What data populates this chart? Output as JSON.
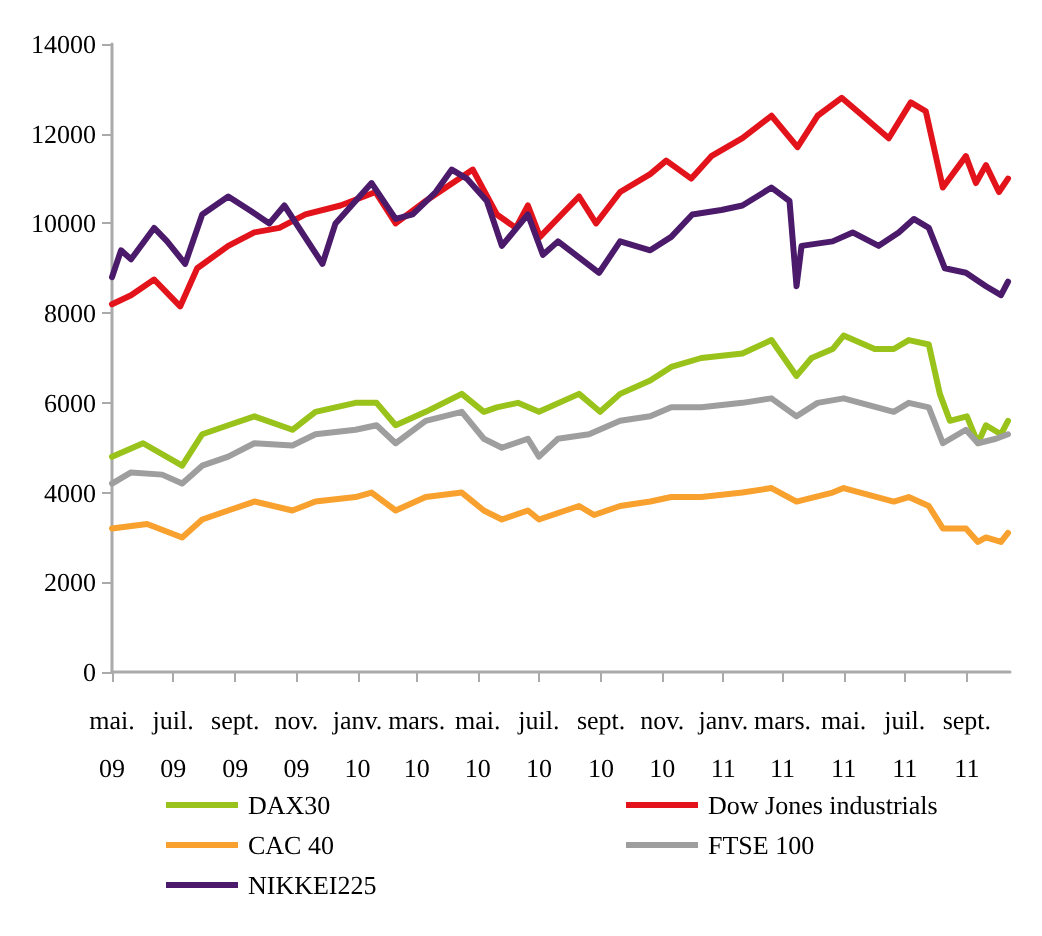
{
  "chart_data": {
    "type": "line",
    "xlim": [
      "2009-05-01",
      "2011-10-14"
    ],
    "xticks": [
      {
        "value": "2009-05-01",
        "label": "mai. 09"
      },
      {
        "value": "2009-07-01",
        "label": "juil. 09"
      },
      {
        "value": "2009-09-01",
        "label": "sept. 09"
      },
      {
        "value": "2009-11-01",
        "label": "nov. 09"
      },
      {
        "value": "2010-01-01",
        "label": "janv. 10"
      },
      {
        "value": "2010-03-01",
        "label": "mars. 10"
      },
      {
        "value": "2010-05-01",
        "label": "mai. 10"
      },
      {
        "value": "2010-07-01",
        "label": "juil. 10"
      },
      {
        "value": "2010-09-01",
        "label": "sept. 10"
      },
      {
        "value": "2010-11-01",
        "label": "nov. 10"
      },
      {
        "value": "2011-01-01",
        "label": "janv. 11"
      },
      {
        "value": "2011-03-01",
        "label": "mars. 11"
      },
      {
        "value": "2011-05-01",
        "label": "mai. 11"
      },
      {
        "value": "2011-07-01",
        "label": "juil. 11"
      },
      {
        "value": "2011-09-01",
        "label": "sept. 11"
      }
    ],
    "ylim": [
      0,
      14000
    ],
    "yticks": [
      0,
      2000,
      4000,
      6000,
      8000,
      10000,
      12000,
      14000
    ],
    "grid": false,
    "legend": "bottom",
    "marker": "none",
    "line_style": "solid",
    "series": [
      {
        "name": "DAX30",
        "color": "#99c31a",
        "x": [
          "2009-05-01",
          "2009-06-01",
          "2009-07-10",
          "2009-07-30",
          "2009-08-25",
          "2009-09-20",
          "2009-10-28",
          "2009-11-20",
          "2009-12-30",
          "2010-01-20",
          "2010-02-08",
          "2010-03-10",
          "2010-04-15",
          "2010-05-07",
          "2010-05-20",
          "2010-06-10",
          "2010-07-01",
          "2010-08-10",
          "2010-08-31",
          "2010-09-20",
          "2010-10-20",
          "2010-11-10",
          "2010-12-10",
          "2011-01-20",
          "2011-02-18",
          "2011-03-15",
          "2011-03-30",
          "2011-04-20",
          "2011-05-01",
          "2011-06-01",
          "2011-06-20",
          "2011-07-05",
          "2011-07-25",
          "2011-08-05",
          "2011-08-15",
          "2011-09-01",
          "2011-09-12",
          "2011-09-20",
          "2011-10-05",
          "2011-10-12"
        ],
        "values": [
          4800,
          5100,
          4600,
          5300,
          5500,
          5700,
          5400,
          5800,
          6000,
          6000,
          5500,
          5800,
          6200,
          5800,
          5900,
          6000,
          5800,
          6200,
          5800,
          6200,
          6500,
          6800,
          7000,
          7100,
          7400,
          6600,
          7000,
          7200,
          7500,
          7200,
          7200,
          7400,
          7300,
          6200,
          5600,
          5700,
          5100,
          5500,
          5300,
          5600
        ]
      },
      {
        "name": "Dow Jones industrials",
        "color": "#e3131b",
        "x": [
          "2009-05-01",
          "2009-05-20",
          "2009-06-12",
          "2009-07-08",
          "2009-07-25",
          "2009-08-25",
          "2009-09-20",
          "2009-10-15",
          "2009-11-10",
          "2009-12-15",
          "2010-01-19",
          "2010-02-08",
          "2010-03-10",
          "2010-04-26",
          "2010-05-20",
          "2010-06-08",
          "2010-06-20",
          "2010-07-02",
          "2010-08-10",
          "2010-08-27",
          "2010-09-20",
          "2010-10-20",
          "2010-11-05",
          "2010-11-30",
          "2010-12-20",
          "2011-01-20",
          "2011-02-18",
          "2011-03-16",
          "2011-04-05",
          "2011-04-29",
          "2011-05-20",
          "2011-06-15",
          "2011-07-07",
          "2011-07-22",
          "2011-08-08",
          "2011-08-31",
          "2011-09-10",
          "2011-09-20",
          "2011-10-03",
          "2011-10-12"
        ],
        "values": [
          8200,
          8400,
          8750,
          8150,
          9000,
          9500,
          9800,
          9900,
          10200,
          10400,
          10700,
          10000,
          10500,
          11200,
          10200,
          9900,
          10400,
          9700,
          10600,
          10000,
          10700,
          11100,
          11400,
          11000,
          11500,
          11900,
          12400,
          11700,
          12400,
          12800,
          12400,
          11900,
          12700,
          12500,
          10800,
          11500,
          10900,
          11300,
          10700,
          11000
        ]
      },
      {
        "name": "CAC 40",
        "color": "#f9a12e",
        "x": [
          "2009-05-01",
          "2009-06-05",
          "2009-07-10",
          "2009-07-30",
          "2009-08-25",
          "2009-09-20",
          "2009-10-28",
          "2009-11-20",
          "2009-12-30",
          "2010-01-15",
          "2010-02-08",
          "2010-03-10",
          "2010-04-15",
          "2010-05-07",
          "2010-05-25",
          "2010-06-20",
          "2010-07-01",
          "2010-08-10",
          "2010-08-25",
          "2010-09-20",
          "2010-10-20",
          "2010-11-10",
          "2010-12-10",
          "2011-01-20",
          "2011-02-18",
          "2011-03-15",
          "2011-04-20",
          "2011-05-01",
          "2011-06-20",
          "2011-07-05",
          "2011-07-25",
          "2011-08-08",
          "2011-08-31",
          "2011-09-12",
          "2011-09-20",
          "2011-10-05",
          "2011-10-12"
        ],
        "values": [
          3200,
          3300,
          3000,
          3400,
          3600,
          3800,
          3600,
          3800,
          3900,
          4000,
          3600,
          3900,
          4000,
          3600,
          3400,
          3600,
          3400,
          3700,
          3500,
          3700,
          3800,
          3900,
          3900,
          4000,
          4100,
          3800,
          4000,
          4100,
          3800,
          3900,
          3700,
          3200,
          3200,
          2900,
          3000,
          2900,
          3100
        ]
      },
      {
        "name": "FTSE 100",
        "color": "#9e9e9e",
        "x": [
          "2009-05-01",
          "2009-05-20",
          "2009-06-20",
          "2009-07-10",
          "2009-07-30",
          "2009-08-25",
          "2009-09-20",
          "2009-10-28",
          "2009-11-20",
          "2009-12-30",
          "2010-01-20",
          "2010-02-08",
          "2010-03-10",
          "2010-04-15",
          "2010-05-07",
          "2010-05-25",
          "2010-06-20",
          "2010-07-01",
          "2010-07-20",
          "2010-08-20",
          "2010-09-20",
          "2010-10-20",
          "2010-11-10",
          "2010-12-10",
          "2011-01-20",
          "2011-02-18",
          "2011-03-15",
          "2011-04-05",
          "2011-05-01",
          "2011-06-20",
          "2011-07-05",
          "2011-07-25",
          "2011-08-08",
          "2011-08-31",
          "2011-09-12",
          "2011-09-30",
          "2011-10-12"
        ],
        "values": [
          4200,
          4450,
          4400,
          4200,
          4600,
          4800,
          5100,
          5050,
          5300,
          5400,
          5500,
          5100,
          5600,
          5800,
          5200,
          5000,
          5200,
          4800,
          5200,
          5300,
          5600,
          5700,
          5900,
          5900,
          6000,
          6100,
          5700,
          6000,
          6100,
          5800,
          6000,
          5900,
          5100,
          5400,
          5100,
          5200,
          5300
        ]
      },
      {
        "name": "NIKKEI225",
        "color": "#4b1a6b",
        "x": [
          "2009-05-01",
          "2009-05-10",
          "2009-05-20",
          "2009-06-12",
          "2009-06-25",
          "2009-07-13",
          "2009-07-30",
          "2009-08-25",
          "2009-09-15",
          "2009-10-05",
          "2009-10-20",
          "2009-11-27",
          "2009-12-10",
          "2009-12-30",
          "2010-01-15",
          "2010-02-08",
          "2010-02-25",
          "2010-03-20",
          "2010-04-05",
          "2010-04-20",
          "2010-05-10",
          "2010-05-25",
          "2010-06-20",
          "2010-07-05",
          "2010-07-20",
          "2010-08-30",
          "2010-09-20",
          "2010-10-20",
          "2010-11-10",
          "2010-12-01",
          "2010-12-30",
          "2011-01-20",
          "2011-02-18",
          "2011-03-08",
          "2011-03-15",
          "2011-03-20",
          "2011-04-20",
          "2011-05-10",
          "2011-06-05",
          "2011-06-25",
          "2011-07-10",
          "2011-07-25",
          "2011-08-10",
          "2011-08-31",
          "2011-09-20",
          "2011-10-05",
          "2011-10-12"
        ],
        "values": [
          8800,
          9400,
          9200,
          9900,
          9600,
          9100,
          10200,
          10600,
          10300,
          10000,
          10400,
          9100,
          10000,
          10500,
          10900,
          10100,
          10200,
          10700,
          11200,
          11000,
          10500,
          9500,
          10200,
          9300,
          9600,
          8900,
          9600,
          9400,
          9700,
          10200,
          10300,
          10400,
          10800,
          10500,
          8600,
          9500,
          9600,
          9800,
          9500,
          9800,
          10100,
          9900,
          9000,
          8900,
          8600,
          8400,
          8700
        ]
      }
    ]
  }
}
